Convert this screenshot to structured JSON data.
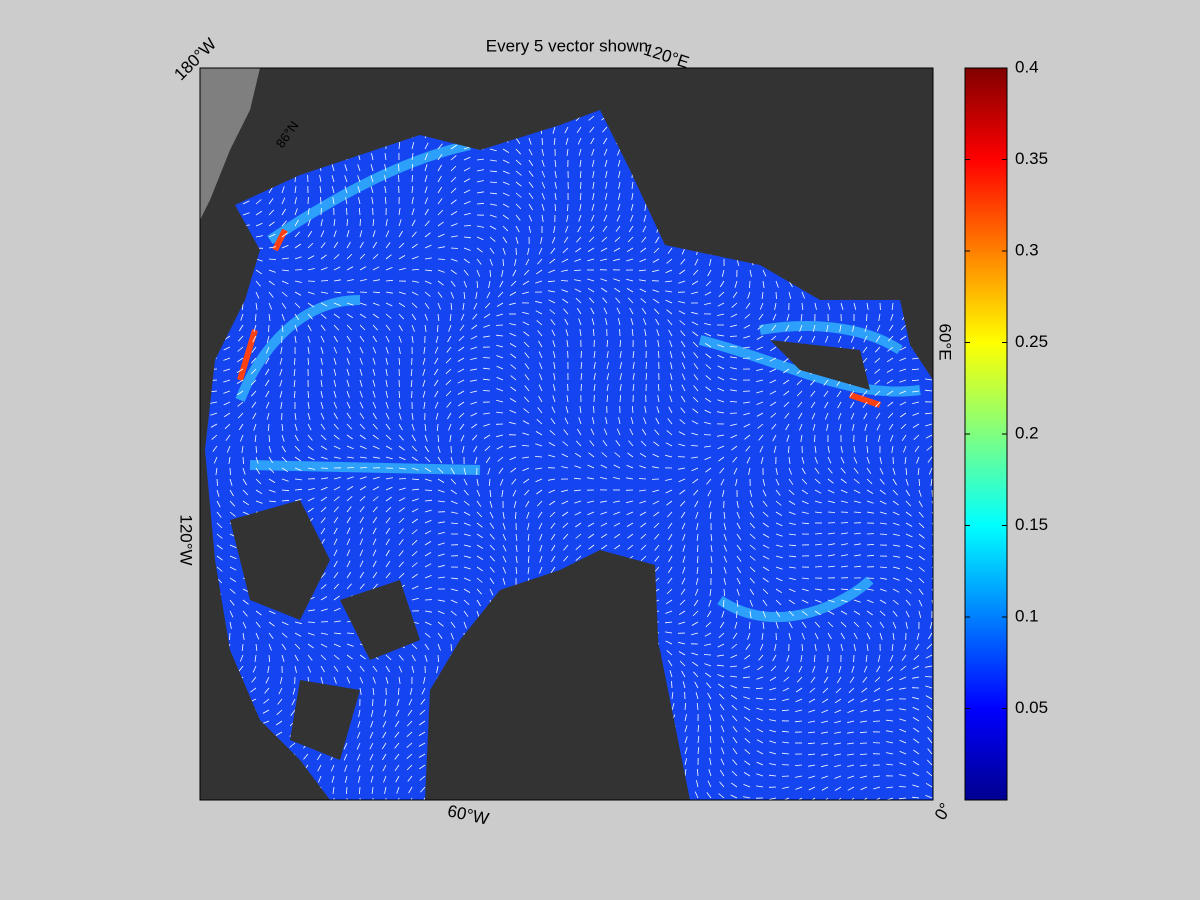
{
  "title": "Every 5 vector shown",
  "map": {
    "labels": [
      "180°W",
      "120°E",
      "60°E",
      "0°",
      "60°W",
      "120°W",
      "86°N"
    ]
  },
  "colorbar": {
    "lim": [
      0,
      0.4
    ],
    "ticks": [
      0.05,
      0.1,
      0.15,
      0.2,
      0.25,
      0.3,
      0.35,
      0.4
    ]
  }
}
